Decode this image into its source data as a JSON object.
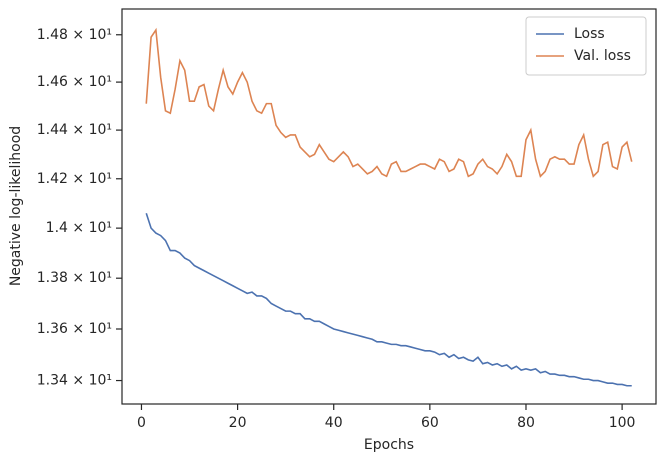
{
  "chart_data": {
    "type": "line",
    "xlabel": "Epochs",
    "ylabel": "Negative log-likelihood",
    "x": [
      1,
      2,
      3,
      4,
      5,
      6,
      7,
      8,
      9,
      10,
      11,
      12,
      13,
      14,
      15,
      16,
      17,
      18,
      19,
      20,
      21,
      22,
      23,
      24,
      25,
      26,
      27,
      28,
      29,
      30,
      31,
      32,
      33,
      34,
      35,
      36,
      37,
      38,
      39,
      40,
      41,
      42,
      43,
      44,
      45,
      46,
      47,
      48,
      49,
      50,
      51,
      52,
      53,
      54,
      55,
      56,
      57,
      58,
      59,
      60,
      61,
      62,
      63,
      64,
      65,
      66,
      67,
      68,
      69,
      70,
      71,
      72,
      73,
      74,
      75,
      76,
      77,
      78,
      79,
      80,
      81,
      82,
      83,
      84,
      85,
      86,
      87,
      88,
      89,
      90,
      91,
      92,
      93,
      94,
      95,
      96,
      97,
      98,
      99,
      100,
      101,
      102
    ],
    "series": [
      {
        "name": "Loss",
        "color": "#4c72b0",
        "values": [
          14.06,
          14.0,
          13.98,
          13.97,
          13.95,
          13.91,
          13.91,
          13.9,
          13.88,
          13.87,
          13.85,
          13.84,
          13.83,
          13.82,
          13.81,
          13.8,
          13.79,
          13.78,
          13.77,
          13.76,
          13.75,
          13.74,
          13.745,
          13.73,
          13.73,
          13.72,
          13.7,
          13.69,
          13.68,
          13.67,
          13.67,
          13.66,
          13.66,
          13.64,
          13.64,
          13.63,
          13.63,
          13.62,
          13.61,
          13.6,
          13.595,
          13.59,
          13.585,
          13.58,
          13.575,
          13.57,
          13.565,
          13.56,
          13.55,
          13.55,
          13.545,
          13.54,
          13.54,
          13.535,
          13.535,
          13.53,
          13.525,
          13.52,
          13.515,
          13.515,
          13.51,
          13.5,
          13.505,
          13.49,
          13.5,
          13.485,
          13.49,
          13.48,
          13.475,
          13.49,
          13.465,
          13.47,
          13.46,
          13.465,
          13.455,
          13.46,
          13.445,
          13.455,
          13.44,
          13.445,
          13.44,
          13.445,
          13.43,
          13.435,
          13.425,
          13.425,
          13.42,
          13.42,
          13.415,
          13.415,
          13.41,
          13.405,
          13.405,
          13.4,
          13.4,
          13.395,
          13.39,
          13.39,
          13.385,
          13.385,
          13.38,
          13.38
        ]
      },
      {
        "name": "Val. loss",
        "color": "#dd8452",
        "values": [
          14.51,
          14.79,
          14.82,
          14.62,
          14.48,
          14.47,
          14.57,
          14.69,
          14.65,
          14.52,
          14.52,
          14.58,
          14.59,
          14.5,
          14.48,
          14.57,
          14.65,
          14.58,
          14.55,
          14.6,
          14.64,
          14.6,
          14.52,
          14.48,
          14.47,
          14.51,
          14.51,
          14.42,
          14.39,
          14.37,
          14.38,
          14.38,
          14.33,
          14.31,
          14.29,
          14.3,
          14.34,
          14.31,
          14.28,
          14.27,
          14.29,
          14.31,
          14.29,
          14.25,
          14.26,
          14.24,
          14.22,
          14.23,
          14.25,
          14.22,
          14.21,
          14.26,
          14.27,
          14.23,
          14.23,
          14.24,
          14.25,
          14.26,
          14.26,
          14.25,
          14.24,
          14.28,
          14.27,
          14.23,
          14.24,
          14.28,
          14.27,
          14.21,
          14.22,
          14.26,
          14.28,
          14.25,
          14.24,
          14.22,
          14.25,
          14.3,
          14.27,
          14.21,
          14.21,
          14.36,
          14.4,
          14.28,
          14.21,
          14.23,
          14.28,
          14.29,
          14.28,
          14.28,
          14.26,
          14.26,
          14.34,
          14.38,
          14.28,
          14.21,
          14.23,
          14.34,
          14.35,
          14.25,
          14.24,
          14.33,
          14.35,
          14.27
        ]
      }
    ],
    "xlim": [
      -4.05,
      107.05
    ],
    "xticks": [
      0,
      20,
      40,
      60,
      80,
      100
    ],
    "ylim": [
      13.31,
      14.91
    ],
    "ylog": true,
    "yticks": [
      {
        "value": 13.4,
        "label": "1.34 × 10¹"
      },
      {
        "value": 13.6,
        "label": "1.36 × 10¹"
      },
      {
        "value": 13.8,
        "label": "1.38 × 10¹"
      },
      {
        "value": 14.0,
        "label": "1.4 × 10¹"
      },
      {
        "value": 14.2,
        "label": "1.42 × 10¹"
      },
      {
        "value": 14.4,
        "label": "1.44 × 10¹"
      },
      {
        "value": 14.6,
        "label": "1.46 × 10¹"
      },
      {
        "value": 14.8,
        "label": "1.48 × 10¹"
      }
    ],
    "grid": false,
    "legend": "upper right"
  }
}
